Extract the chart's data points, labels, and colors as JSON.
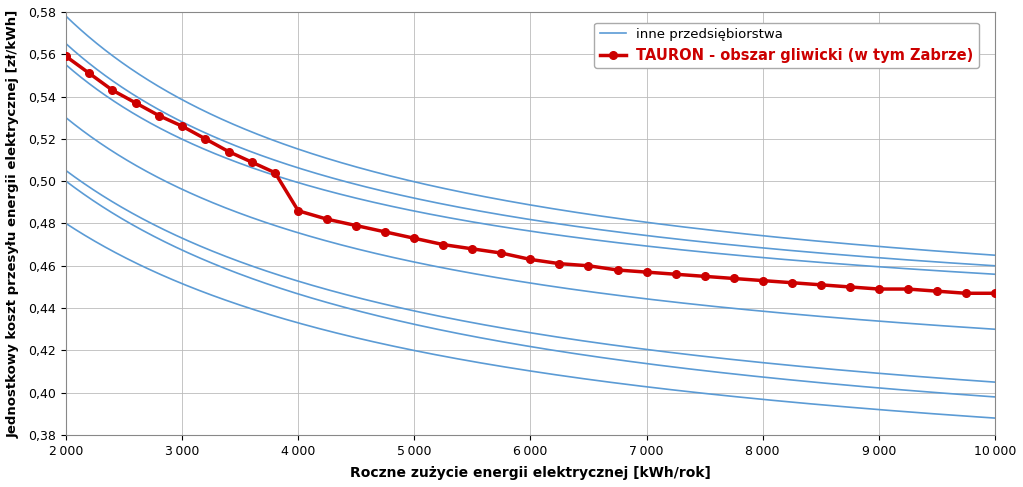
{
  "xlabel": "Roczne zużycie energii elektrycznej [kWh/rok]",
  "ylabel": "Jednostkowy koszt przesyłu energii elektrycznej [zł/kWh]",
  "xlim": [
    2000,
    10000
  ],
  "ylim": [
    0.38,
    0.58
  ],
  "xticks": [
    2000,
    3000,
    4000,
    5000,
    6000,
    7000,
    8000,
    9000,
    10000
  ],
  "yticks": [
    0.38,
    0.4,
    0.42,
    0.44,
    0.46,
    0.48,
    0.5,
    0.52,
    0.54,
    0.56,
    0.58
  ],
  "tauron_color": "#cc0000",
  "blue_color": "#5B9BD5",
  "legend_inne": "inne przedsiębiorstwa",
  "legend_tauron": "TAURON - obszar gliwicki (w tym Zabrze)",
  "background_color": "#ffffff",
  "grid_color": "#bbbbbb",
  "blue_lines": [
    {
      "a": 0.36,
      "b": 800,
      "c": 0.12
    },
    {
      "a": 0.33,
      "b": 800,
      "c": 0.13
    },
    {
      "a": 0.3,
      "b": 800,
      "c": 0.135
    },
    {
      "a": 0.22,
      "b": 600,
      "c": 0.12
    },
    {
      "a": 0.18,
      "b": 500,
      "c": 0.1
    },
    {
      "a": 0.16,
      "b": 500,
      "c": 0.098
    },
    {
      "a": 0.12,
      "b": 400,
      "c": 0.085
    }
  ],
  "tauron_x": [
    2000,
    2200,
    2400,
    2600,
    2800,
    3000,
    3200,
    3400,
    3600,
    3800,
    4000,
    4250,
    4500,
    4750,
    5000,
    5250,
    5500,
    5750,
    6000,
    6250,
    6500,
    6750,
    7000,
    7250,
    7500,
    7750,
    8000,
    8250,
    8500,
    8750,
    9000,
    9250,
    9500,
    9750,
    10000
  ],
  "tauron_y": [
    0.559,
    0.551,
    0.543,
    0.537,
    0.531,
    0.526,
    0.52,
    0.514,
    0.509,
    0.504,
    0.486,
    0.482,
    0.479,
    0.476,
    0.473,
    0.47,
    0.468,
    0.466,
    0.463,
    0.461,
    0.46,
    0.458,
    0.457,
    0.456,
    0.455,
    0.454,
    0.453,
    0.452,
    0.451,
    0.45,
    0.449,
    0.449,
    0.448,
    0.447,
    0.447
  ]
}
